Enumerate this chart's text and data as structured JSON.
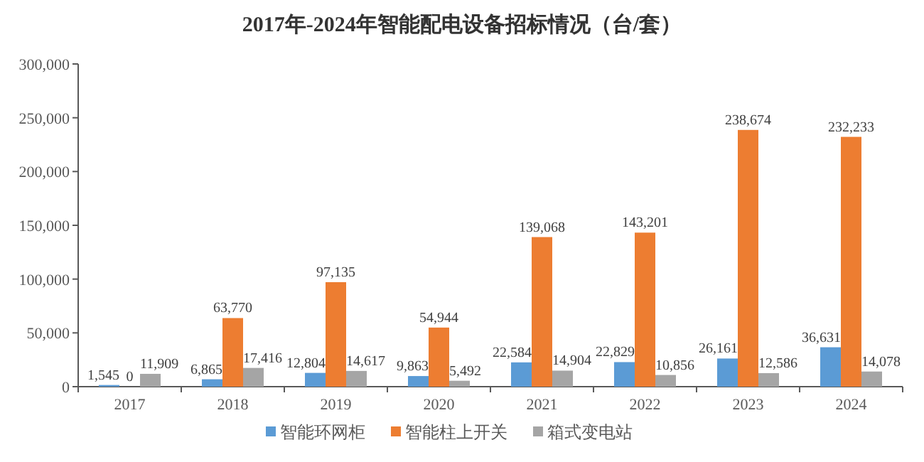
{
  "chart_data": {
    "type": "bar",
    "title": "2017年-2024年智能配电设备招标情况（台/套）",
    "categories": [
      "2017",
      "2018",
      "2019",
      "2020",
      "2021",
      "2022",
      "2023",
      "2024"
    ],
    "series": [
      {
        "name": "智能环网柜",
        "color": "#5b9bd5",
        "values": [
          1545,
          6865,
          12804,
          9863,
          22584,
          22829,
          26161,
          36631
        ],
        "value_labels": [
          "1,545",
          "6,865",
          "12,804",
          "9,863",
          "22,584",
          "22,829",
          "26,161",
          "36,631"
        ]
      },
      {
        "name": "智能柱上开关",
        "color": "#ed7d31",
        "values": [
          0,
          63770,
          97135,
          54944,
          139068,
          143201,
          238674,
          232233
        ],
        "value_labels": [
          "0",
          "63,770",
          "97,135",
          "54,944",
          "139,068",
          "143,201",
          "238,674",
          "232,233"
        ]
      },
      {
        "name": "箱式变电站",
        "color": "#a5a5a5",
        "values": [
          11909,
          17416,
          14617,
          5492,
          14904,
          10856,
          12586,
          14078
        ],
        "value_labels": [
          "11,909",
          "17,416",
          "14,617",
          "5,492",
          "14,904",
          "10,856",
          "12,586",
          "14,078"
        ]
      }
    ],
    "ylim": [
      0,
      300000
    ],
    "yticks": [
      {
        "value": 0,
        "label": "0"
      },
      {
        "value": 50000,
        "label": "50,000"
      },
      {
        "value": 100000,
        "label": "100,000"
      },
      {
        "value": 150000,
        "label": "150,000"
      },
      {
        "value": 200000,
        "label": "200,000"
      },
      {
        "value": 250000,
        "label": "250,000"
      },
      {
        "value": 300000,
        "label": "300,000"
      }
    ],
    "grid": false,
    "legend": "bottom"
  }
}
